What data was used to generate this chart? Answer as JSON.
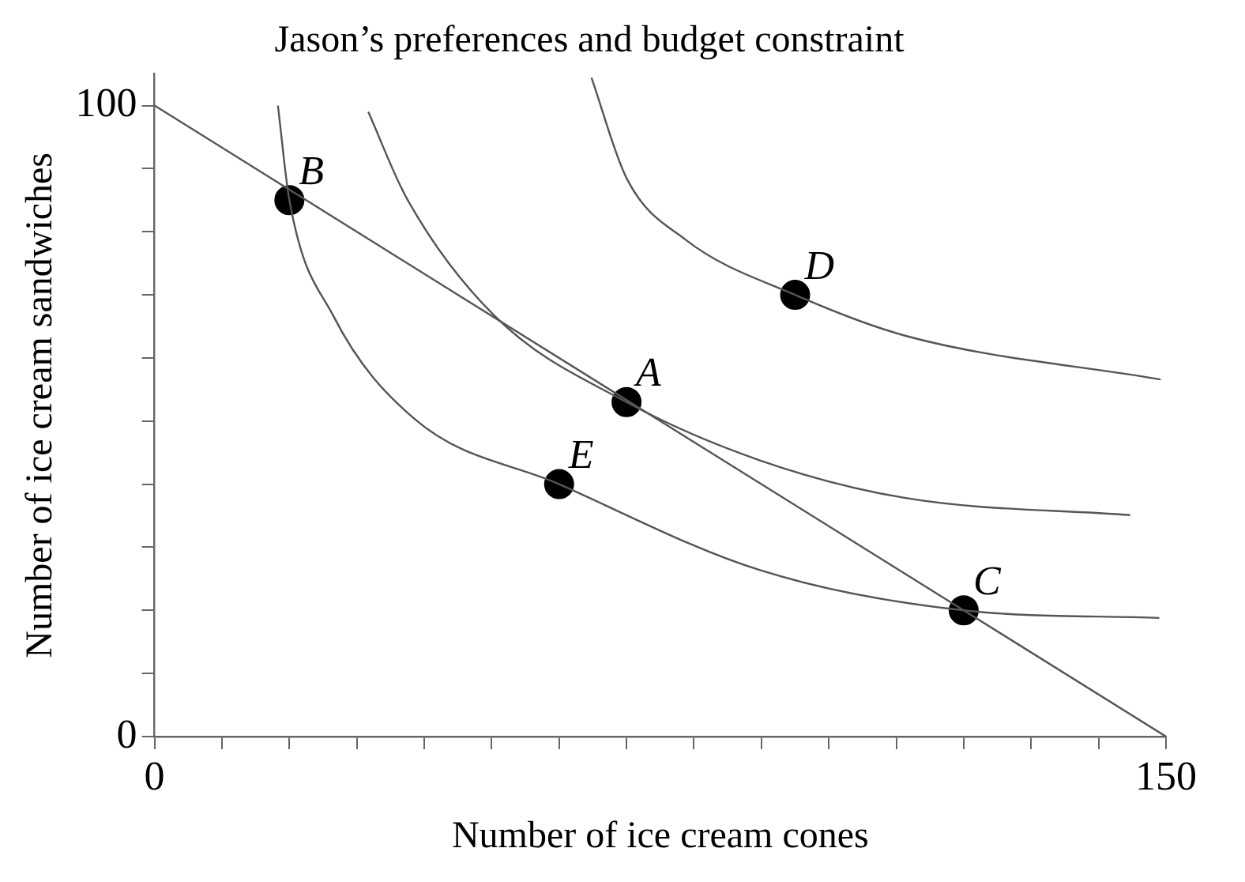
{
  "chart_data": {
    "type": "line",
    "title": "Jason’s preferences and budget constraint",
    "xlabel": "Number of ice cream cones",
    "ylabel": "Number of ice cream sandwiches",
    "xlim": [
      0,
      150
    ],
    "ylim": [
      0,
      105
    ],
    "xticks": [
      0,
      {
        "value": 10,
        "label": null
      },
      {
        "value": 20,
        "label": null
      },
      {
        "value": 30,
        "label": null
      },
      {
        "value": 40,
        "label": null
      },
      {
        "value": 50,
        "label": null
      },
      {
        "value": 60,
        "label": null
      },
      {
        "value": 70,
        "label": null
      },
      {
        "value": 80,
        "label": null
      },
      {
        "value": 90,
        "label": null
      },
      {
        "value": 100,
        "label": null
      },
      {
        "value": 110,
        "label": null
      },
      {
        "value": 120,
        "label": null
      },
      {
        "value": 130,
        "label": null
      },
      {
        "value": 140,
        "label": null
      },
      150
    ],
    "yticks": [
      0,
      {
        "value": 10,
        "label": null
      },
      {
        "value": 20,
        "label": null
      },
      {
        "value": 30,
        "label": null
      },
      {
        "value": 40,
        "label": null
      },
      {
        "value": 50,
        "label": null
      },
      {
        "value": 60,
        "label": null
      },
      {
        "value": 70,
        "label": null
      },
      {
        "value": 80,
        "label": null
      },
      {
        "value": 90,
        "label": null
      },
      100
    ],
    "grid": false,
    "legend": false,
    "series": [
      {
        "type": "line",
        "color": "#555555",
        "marker": "none",
        "x": [
          0,
          150
        ],
        "values": [
          100,
          0
        ]
      },
      {
        "type": "line",
        "color": "#555555",
        "marker": "none",
        "x": [
          18.3,
          20,
          26.5,
          38.5,
          60,
          89.7,
          120,
          149
        ],
        "values": [
          100,
          85,
          66.7,
          50.4,
          40,
          26.4,
          20,
          18.8
        ]
      },
      {
        "type": "line",
        "color": "#555555",
        "marker": "none",
        "x": [
          31.7,
          37.4,
          50.4,
          70,
          89.7,
          111.4,
          144.7
        ],
        "values": [
          99,
          85.3,
          66.7,
          53,
          43.8,
          37.8,
          35.1
        ]
      },
      {
        "type": "line",
        "color": "#555555",
        "marker": "none",
        "x": [
          64.8,
          70,
          78.8,
          95,
          111.4,
          149.2
        ],
        "values": [
          104.4,
          88.5,
          78.7,
          70,
          63.5,
          56.6
        ]
      },
      {
        "type": "scatter",
        "color": "#000000",
        "marker": "circle",
        "x": [
          70,
          20,
          120,
          95,
          60
        ],
        "values": [
          53,
          85,
          20,
          70,
          40
        ]
      }
    ],
    "annotations": [
      {
        "text": "A",
        "x": 70,
        "y": 53
      },
      {
        "text": "B",
        "x": 20,
        "y": 85
      },
      {
        "text": "C",
        "x": 120,
        "y": 20
      },
      {
        "text": "D",
        "x": 95,
        "y": 70
      },
      {
        "text": "E",
        "x": 60,
        "y": 40
      }
    ]
  }
}
